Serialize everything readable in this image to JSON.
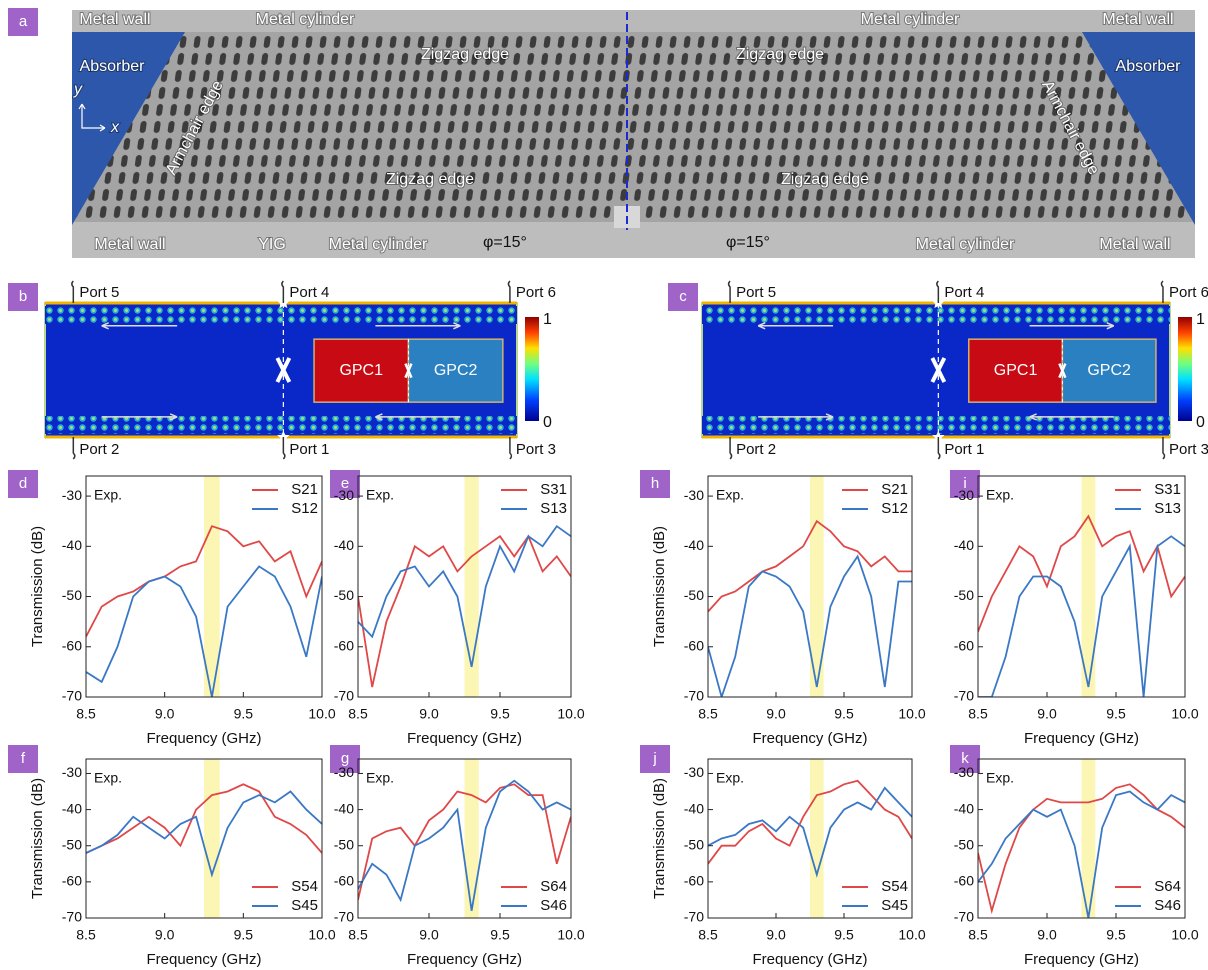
{
  "photo": {
    "panel": "a",
    "labels": [
      "Metal wall",
      "Metal cylinder",
      "Zigzag edge",
      "Zigzag edge",
      "Metal cylinder",
      "Metal wall",
      "Absorber",
      "Absorber",
      "Armchair edge",
      "Armchair edge",
      "y",
      "x",
      "Zigzag edge",
      "Zigzag edge",
      "Metal wall",
      "YIG",
      "Metal cylinder",
      "φ=15°",
      "φ=15°",
      "Metal cylinder",
      "Metal wall"
    ]
  },
  "maps": [
    {
      "panel": "b",
      "ports": [
        "Port 5",
        "Port 4",
        "Port 6",
        "Port 2",
        "Port 1",
        "Port 3"
      ],
      "regions": [
        "GPC1",
        "GPC2"
      ],
      "colorbar_ticks": [
        1,
        0
      ]
    },
    {
      "panel": "c",
      "ports": [
        "Port 5",
        "Port 4",
        "Port 6",
        "Port 2",
        "Port 1",
        "Port 3"
      ],
      "regions": [
        "GPC1",
        "GPC2"
      ],
      "colorbar_ticks": [
        1,
        0
      ]
    }
  ],
  "chart_data": [
    {
      "type": "line",
      "panel": "d",
      "annotation": "Exp.",
      "xlabel": "Frequency (GHz)",
      "ylabel": "Transmission (dB)",
      "legend": "upper right",
      "x": [
        8.5,
        8.6,
        8.7,
        8.8,
        8.9,
        9.0,
        9.1,
        9.2,
        9.3,
        9.4,
        9.5,
        9.6,
        9.7,
        9.8,
        9.9,
        10.0
      ],
      "series": [
        {
          "name": "S21",
          "color": "#e04848",
          "values": [
            -58,
            -52,
            -50,
            -49,
            -47,
            -46,
            -44,
            -43,
            -36,
            -37,
            -40,
            -39,
            -43,
            -41,
            -50,
            -43
          ]
        },
        {
          "name": "S12",
          "color": "#3a78c6",
          "values": [
            -65,
            -67,
            -60,
            -50,
            -47,
            -46,
            -48,
            -54,
            -70,
            -52,
            -48,
            -44,
            -46,
            -52,
            -62,
            -46
          ]
        }
      ],
      "xlim": [
        8.5,
        10.0
      ],
      "xticks": [
        8.5,
        {
          "value": 9.0,
          "label": "9.0"
        },
        9.5,
        {
          "value": 10.0,
          "label": "10.0"
        }
      ],
      "ylim": [
        -70,
        -26
      ],
      "yticks": [
        -70,
        -60,
        -50,
        -40,
        -30
      ],
      "highlight": {
        "x": [
          9.25,
          9.35
        ],
        "color": "#fbf6b4"
      }
    },
    {
      "type": "line",
      "panel": "e",
      "annotation": "Exp.",
      "xlabel": "Frequency (GHz)",
      "legend": "upper right",
      "x": [
        8.5,
        8.6,
        8.7,
        8.8,
        8.9,
        9.0,
        9.1,
        9.2,
        9.3,
        9.4,
        9.5,
        9.6,
        9.7,
        9.8,
        9.9,
        10.0
      ],
      "series": [
        {
          "name": "S31",
          "color": "#e04848",
          "values": [
            -50,
            -68,
            -55,
            -48,
            -40,
            -42,
            -40,
            -45,
            -42,
            -40,
            -38,
            -42,
            -38,
            -45,
            -42,
            -46
          ]
        },
        {
          "name": "S13",
          "color": "#3a78c6",
          "values": [
            -55,
            -58,
            -50,
            -45,
            -44,
            -48,
            -45,
            -50,
            -64,
            -48,
            -40,
            -45,
            -38,
            -40,
            -36,
            -38
          ]
        }
      ],
      "xlim": [
        8.5,
        10.0
      ],
      "xticks": [
        8.5,
        {
          "value": 9.0,
          "label": "9.0"
        },
        9.5,
        {
          "value": 10.0,
          "label": "10.0"
        }
      ],
      "ylim": [
        -70,
        -26
      ],
      "yticks": [
        -70,
        -60,
        -50,
        -40,
        -30
      ],
      "highlight": {
        "x": [
          9.25,
          9.35
        ],
        "color": "#fbf6b4"
      }
    },
    {
      "type": "line",
      "panel": "f",
      "annotation": "Exp.",
      "xlabel": "Frequency (GHz)",
      "ylabel": "Transmission (dB)",
      "legend": "lower right",
      "x": [
        8.5,
        8.6,
        8.7,
        8.8,
        8.9,
        9.0,
        9.1,
        9.2,
        9.3,
        9.4,
        9.5,
        9.6,
        9.7,
        9.8,
        9.9,
        10.0
      ],
      "series": [
        {
          "name": "S54",
          "color": "#e04848",
          "values": [
            -52,
            -50,
            -48,
            -45,
            -42,
            -45,
            -50,
            -40,
            -36,
            -35,
            -33,
            -35,
            -42,
            -44,
            -47,
            -52
          ]
        },
        {
          "name": "S45",
          "color": "#3a78c6",
          "values": [
            -52,
            -50,
            -47,
            -42,
            -45,
            -48,
            -44,
            -42,
            -58,
            -45,
            -38,
            -36,
            -38,
            -35,
            -40,
            -44
          ]
        }
      ],
      "xlim": [
        8.5,
        10.0
      ],
      "xticks": [
        8.5,
        {
          "value": 9.0,
          "label": "9.0"
        },
        9.5,
        {
          "value": 10.0,
          "label": "10.0"
        }
      ],
      "ylim": [
        -70,
        -26
      ],
      "yticks": [
        -70,
        -60,
        -50,
        -40,
        -30
      ],
      "highlight": {
        "x": [
          9.25,
          9.35
        ],
        "color": "#fbf6b4"
      }
    },
    {
      "type": "line",
      "panel": "g",
      "annotation": "Exp.",
      "xlabel": "Frequency (GHz)",
      "legend": "lower right",
      "x": [
        8.5,
        8.6,
        8.7,
        8.8,
        8.9,
        9.0,
        9.1,
        9.2,
        9.3,
        9.4,
        9.5,
        9.6,
        9.7,
        9.8,
        9.9,
        10.0
      ],
      "series": [
        {
          "name": "S64",
          "color": "#e04848",
          "values": [
            -65,
            -48,
            -46,
            -45,
            -50,
            -43,
            -40,
            -35,
            -36,
            -38,
            -34,
            -33,
            -36,
            -36,
            -55,
            -42
          ]
        },
        {
          "name": "S46",
          "color": "#3a78c6",
          "values": [
            -62,
            -55,
            -58,
            -65,
            -50,
            -48,
            -45,
            -40,
            -68,
            -45,
            -35,
            -32,
            -35,
            -40,
            -38,
            -40
          ]
        }
      ],
      "xlim": [
        8.5,
        10.0
      ],
      "xticks": [
        8.5,
        {
          "value": 9.0,
          "label": "9.0"
        },
        9.5,
        {
          "value": 10.0,
          "label": "10.0"
        }
      ],
      "ylim": [
        -70,
        -26
      ],
      "yticks": [
        -70,
        -60,
        -50,
        -40,
        -30
      ],
      "highlight": {
        "x": [
          9.25,
          9.35
        ],
        "color": "#fbf6b4"
      }
    },
    {
      "type": "line",
      "panel": "h",
      "annotation": "Exp.",
      "xlabel": "Frequency (GHz)",
      "ylabel": "Transmission (dB)",
      "legend": "upper right",
      "x": [
        8.5,
        8.6,
        8.7,
        8.8,
        8.9,
        9.0,
        9.1,
        9.2,
        9.3,
        9.4,
        9.5,
        9.6,
        9.7,
        9.8,
        9.9,
        10.0
      ],
      "series": [
        {
          "name": "S21",
          "color": "#e04848",
          "values": [
            -53,
            -50,
            -49,
            -47,
            -45,
            -44,
            -42,
            -40,
            -35,
            -37,
            -40,
            -41,
            -44,
            -42,
            -45,
            -45
          ]
        },
        {
          "name": "S12",
          "color": "#3a78c6",
          "values": [
            -60,
            -70,
            -62,
            -48,
            -45,
            -46,
            -48,
            -53,
            -68,
            -52,
            -46,
            -42,
            -50,
            -68,
            -47,
            -47
          ]
        }
      ],
      "xlim": [
        8.5,
        10.0
      ],
      "xticks": [
        8.5,
        {
          "value": 9.0,
          "label": "9.0"
        },
        9.5,
        {
          "value": 10.0,
          "label": "10.0"
        }
      ],
      "ylim": [
        -70,
        -26
      ],
      "yticks": [
        -70,
        -60,
        -50,
        -40,
        -30
      ],
      "highlight": {
        "x": [
          9.25,
          9.35
        ],
        "color": "#fbf6b4"
      }
    },
    {
      "type": "line",
      "panel": "i",
      "annotation": "Exp.",
      "xlabel": "Frequency (GHz)",
      "legend": "upper right",
      "x": [
        8.5,
        8.6,
        8.7,
        8.8,
        8.9,
        9.0,
        9.1,
        9.2,
        9.3,
        9.4,
        9.5,
        9.6,
        9.7,
        9.8,
        9.9,
        10.0
      ],
      "series": [
        {
          "name": "S31",
          "color": "#e04848",
          "values": [
            -57,
            -50,
            -45,
            -40,
            -42,
            -48,
            -40,
            -38,
            -34,
            -40,
            -38,
            -37,
            -45,
            -40,
            -50,
            -46
          ]
        },
        {
          "name": "S13",
          "color": "#3a78c6",
          "values": [
            -70,
            -70,
            -62,
            -50,
            -46,
            -46,
            -48,
            -55,
            -68,
            -50,
            -45,
            -40,
            -70,
            -40,
            -38,
            -40
          ]
        }
      ],
      "xlim": [
        8.5,
        10.0
      ],
      "xticks": [
        8.5,
        {
          "value": 9.0,
          "label": "9.0"
        },
        9.5,
        {
          "value": 10.0,
          "label": "10.0"
        }
      ],
      "ylim": [
        -70,
        -26
      ],
      "yticks": [
        -70,
        -60,
        -50,
        -40,
        -30
      ],
      "highlight": {
        "x": [
          9.25,
          9.35
        ],
        "color": "#fbf6b4"
      }
    },
    {
      "type": "line",
      "panel": "j",
      "annotation": "Exp.",
      "xlabel": "Frequency (GHz)",
      "ylabel": "Transmission (dB)",
      "legend": "lower right",
      "x": [
        8.5,
        8.6,
        8.7,
        8.8,
        8.9,
        9.0,
        9.1,
        9.2,
        9.3,
        9.4,
        9.5,
        9.6,
        9.7,
        9.8,
        9.9,
        10.0
      ],
      "series": [
        {
          "name": "S54",
          "color": "#e04848",
          "values": [
            -55,
            -50,
            -50,
            -46,
            -44,
            -48,
            -50,
            -42,
            -36,
            -35,
            -33,
            -32,
            -36,
            -40,
            -42,
            -48
          ]
        },
        {
          "name": "S45",
          "color": "#3a78c6",
          "values": [
            -50,
            -48,
            -47,
            -44,
            -43,
            -46,
            -42,
            -45,
            -58,
            -45,
            -40,
            -38,
            -40,
            -34,
            -38,
            -42
          ]
        }
      ],
      "xlim": [
        8.5,
        10.0
      ],
      "xticks": [
        8.5,
        {
          "value": 9.0,
          "label": "9.0"
        },
        9.5,
        {
          "value": 10.0,
          "label": "10.0"
        }
      ],
      "ylim": [
        -70,
        -26
      ],
      "yticks": [
        -70,
        -60,
        -50,
        -40,
        -30
      ],
      "highlight": {
        "x": [
          9.25,
          9.35
        ],
        "color": "#fbf6b4"
      }
    },
    {
      "type": "line",
      "panel": "k",
      "annotation": "Exp.",
      "xlabel": "Frequency (GHz)",
      "legend": "lower right",
      "x": [
        8.5,
        8.6,
        8.7,
        8.8,
        8.9,
        9.0,
        9.1,
        9.2,
        9.3,
        9.4,
        9.5,
        9.6,
        9.7,
        9.8,
        9.9,
        10.0
      ],
      "series": [
        {
          "name": "S64",
          "color": "#e04848",
          "values": [
            -52,
            -68,
            -55,
            -45,
            -40,
            -37,
            -38,
            -38,
            -38,
            -37,
            -34,
            -33,
            -36,
            -40,
            -42,
            -45
          ]
        },
        {
          "name": "S46",
          "color": "#3a78c6",
          "values": [
            -60,
            -55,
            -48,
            -44,
            -40,
            -42,
            -40,
            -50,
            -70,
            -45,
            -36,
            -35,
            -38,
            -40,
            -36,
            -38
          ]
        }
      ],
      "xlim": [
        8.5,
        10.0
      ],
      "xticks": [
        8.5,
        {
          "value": 9.0,
          "label": "9.0"
        },
        9.5,
        {
          "value": 10.0,
          "label": "10.0"
        }
      ],
      "ylim": [
        -70,
        -26
      ],
      "yticks": [
        -70,
        -60,
        -50,
        -40,
        -30
      ],
      "highlight": {
        "x": [
          9.25,
          9.35
        ],
        "color": "#fbf6b4"
      }
    }
  ]
}
